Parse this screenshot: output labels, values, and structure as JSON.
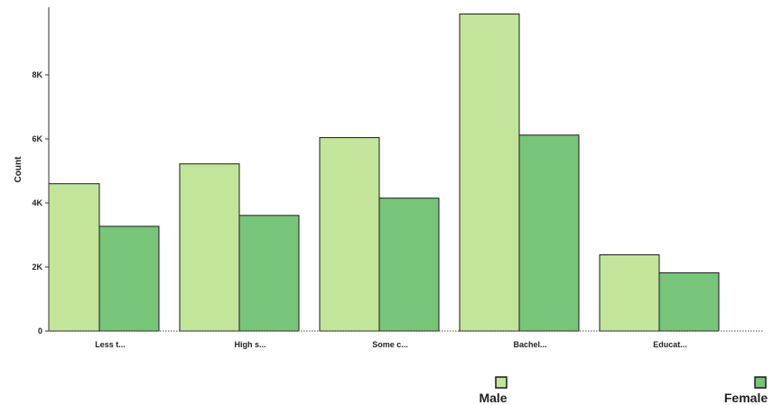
{
  "chart_data": {
    "type": "bar",
    "categories": [
      "Less t...",
      "High s...",
      "Some c...",
      "Bachel...",
      "Educat..."
    ],
    "series": [
      {
        "name": "Male",
        "values": [
          4600,
          5220,
          6040,
          9900,
          2380
        ]
      },
      {
        "name": "Female",
        "values": [
          3270,
          3610,
          4150,
          6120,
          1820
        ]
      }
    ],
    "ylabel": "Count",
    "xlabel": "",
    "ylim": [
      0,
      10000
    ],
    "yticks": [
      0,
      2000,
      4000,
      6000,
      8000
    ],
    "ytick_labels": [
      "0",
      "2K",
      "4K",
      "6K",
      "8K"
    ],
    "grid": false,
    "legend_position": "bottom-right",
    "colors": {
      "Male": "#c3e59a",
      "Female": "#76c579",
      "outline": "#1a1a1a"
    }
  }
}
